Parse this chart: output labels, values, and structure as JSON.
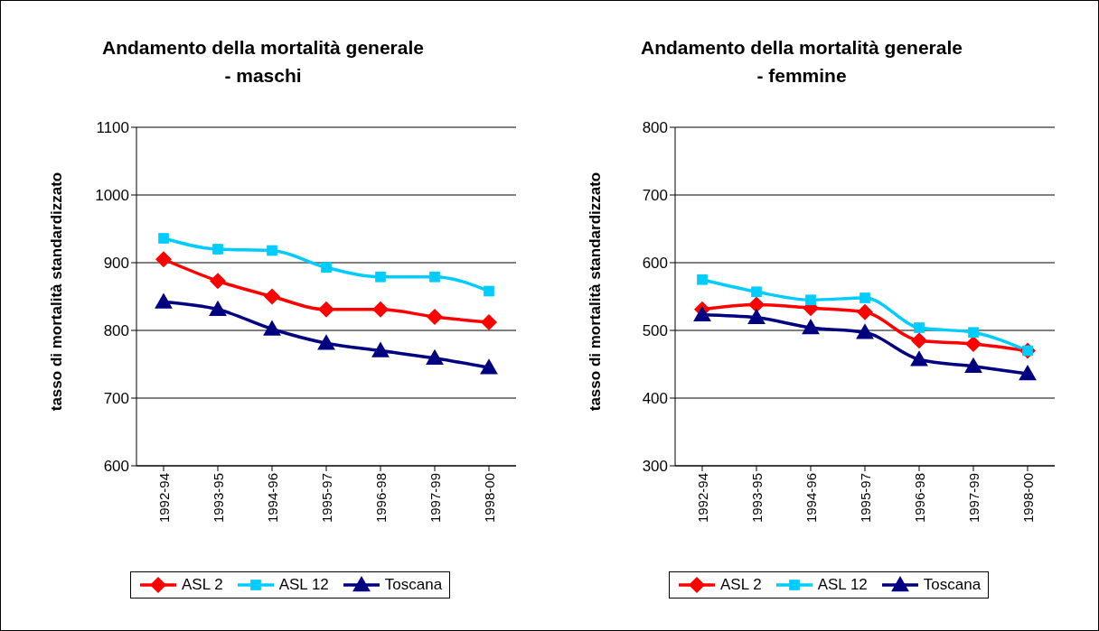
{
  "chart_data": [
    {
      "type": "line",
      "title": "Andamento della mortalità generale - maschi",
      "ylabel": "tasso di mortalità standardizzato",
      "categories": [
        "1992-94",
        "1993-95",
        "1994-96",
        "1995-97",
        "1996-98",
        "1997-99",
        "1998-00"
      ],
      "ylim": [
        600,
        1100
      ],
      "yticks": [
        600,
        700,
        800,
        900,
        1000,
        1100
      ],
      "grid": "y",
      "legend": "bottom",
      "series": [
        {
          "name": "ASL 2",
          "color": "#ff0000",
          "marker": "diamond",
          "values": [
            905,
            873,
            850,
            831,
            831,
            820,
            812
          ]
        },
        {
          "name": "ASL 12",
          "color": "#00ccff",
          "marker": "square",
          "values": [
            936,
            920,
            918,
            893,
            879,
            879,
            858
          ]
        },
        {
          "name": "Toscana",
          "color": "#000080",
          "marker": "triangle",
          "values": [
            842,
            831,
            802,
            781,
            770,
            759,
            745
          ]
        }
      ]
    },
    {
      "type": "line",
      "title": "Andamento della mortalità generale - femmine",
      "ylabel": "tasso di mortalità standardizzato",
      "categories": [
        "1992-94",
        "1993-95",
        "1994-96",
        "1995-97",
        "1996-98",
        "1997-99",
        "1998-00"
      ],
      "ylim": [
        300,
        800
      ],
      "yticks": [
        300,
        400,
        500,
        600,
        700,
        800
      ],
      "grid": "y",
      "legend": "bottom",
      "series": [
        {
          "name": "ASL 2",
          "color": "#ff0000",
          "marker": "diamond",
          "values": [
            531,
            538,
            533,
            527,
            485,
            480,
            470
          ]
        },
        {
          "name": "ASL 12",
          "color": "#00ccff",
          "marker": "square",
          "values": [
            575,
            557,
            545,
            548,
            504,
            497,
            470
          ]
        },
        {
          "name": "Toscana",
          "color": "#000080",
          "marker": "triangle",
          "values": [
            523,
            519,
            504,
            497,
            457,
            447,
            436
          ]
        }
      ]
    }
  ]
}
